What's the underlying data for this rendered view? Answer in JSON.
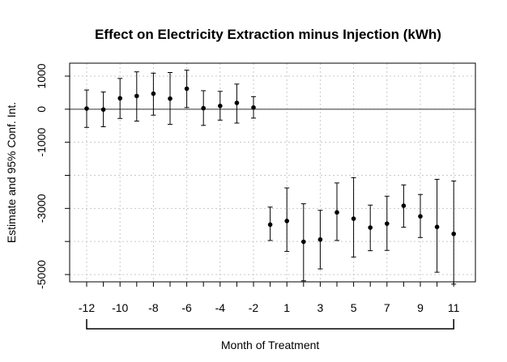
{
  "chart_data": {
    "type": "scatter",
    "title": "Effect on Electricity Extraction minus Injection (kWh)",
    "xlabel": "Month of Treatment",
    "ylabel": "Estimate and 95% Conf. Int.",
    "x_tick_labels": [
      "-12",
      "-10",
      "-8",
      "-6",
      "-4",
      "-2",
      "1",
      "3",
      "5",
      "7",
      "9",
      "11"
    ],
    "y_ticks": [
      1000,
      0,
      -1000,
      -3000,
      -5000
    ],
    "ylim": [
      -5500,
      1450
    ],
    "grid": true,
    "reference_line": 0,
    "points": [
      {
        "month": -12,
        "estimate": 20,
        "lower": -550,
        "upper": 580
      },
      {
        "month": -11,
        "estimate": -10,
        "lower": -530,
        "upper": 520
      },
      {
        "month": -10,
        "estimate": 330,
        "lower": -280,
        "upper": 930
      },
      {
        "month": -9,
        "estimate": 400,
        "lower": -360,
        "upper": 1130
      },
      {
        "month": -8,
        "estimate": 470,
        "lower": -180,
        "upper": 1090
      },
      {
        "month": -7,
        "estimate": 320,
        "lower": -460,
        "upper": 1110
      },
      {
        "month": -6,
        "estimate": 620,
        "lower": 50,
        "upper": 1180
      },
      {
        "month": -5,
        "estimate": 30,
        "lower": -490,
        "upper": 560
      },
      {
        "month": -4,
        "estimate": 100,
        "lower": -330,
        "upper": 540
      },
      {
        "month": -3,
        "estimate": 190,
        "lower": -420,
        "upper": 760
      },
      {
        "month": -2,
        "estimate": 50,
        "lower": -270,
        "upper": 380
      },
      {
        "month": 0,
        "estimate": -3490,
        "lower": -3970,
        "upper": -2960
      },
      {
        "month": 1,
        "estimate": -3380,
        "lower": -4300,
        "upper": -2380
      },
      {
        "month": 2,
        "estimate": -4010,
        "lower": -5190,
        "upper": -2860
      },
      {
        "month": 3,
        "estimate": -3940,
        "lower": -4830,
        "upper": -3060
      },
      {
        "month": 4,
        "estimate": -3120,
        "lower": -3970,
        "upper": -2230
      },
      {
        "month": 5,
        "estimate": -3310,
        "lower": -4470,
        "upper": -2070
      },
      {
        "month": 6,
        "estimate": -3580,
        "lower": -4280,
        "upper": -2900
      },
      {
        "month": 7,
        "estimate": -3460,
        "lower": -4270,
        "upper": -2630
      },
      {
        "month": 8,
        "estimate": -2920,
        "lower": -3570,
        "upper": -2290
      },
      {
        "month": 9,
        "estimate": -3240,
        "lower": -3880,
        "upper": -2580
      },
      {
        "month": 10,
        "estimate": -3560,
        "lower": -4930,
        "upper": -2120
      },
      {
        "month": 11,
        "estimate": -3770,
        "lower": -5290,
        "upper": -2170
      }
    ]
  }
}
